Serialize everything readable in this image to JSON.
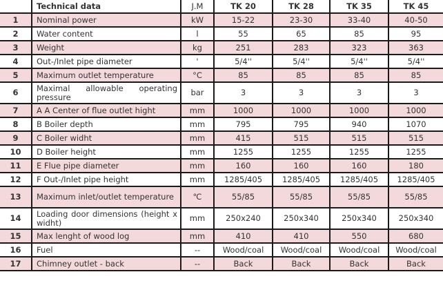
{
  "header": {
    "title": "Technical data",
    "unit": "J.M",
    "models": [
      "TK 20",
      "TK 28",
      "TK  35",
      "TK  45"
    ]
  },
  "rows": [
    {
      "n": "1",
      "name": "Nominal power",
      "unit": "kW",
      "values": [
        "15-22",
        "23-30",
        "33-40",
        "40-50"
      ]
    },
    {
      "n": "2",
      "name": "Water content",
      "unit": "l",
      "values": [
        "55",
        "65",
        "85",
        "95"
      ]
    },
    {
      "n": "3",
      "name": "Weight",
      "unit": "kg",
      "values": [
        "251",
        "283",
        "323",
        "363"
      ]
    },
    {
      "n": "4",
      "name": "Out-/Inlet pipe diameter",
      "unit": "'",
      "values": [
        "5/4''",
        "5/4''",
        "5/4''",
        "5/4''"
      ]
    },
    {
      "n": "5",
      "name": "Maximum outlet temperature",
      "unit": "°C",
      "values": [
        "85",
        "85",
        "85",
        "85"
      ]
    },
    {
      "n": "6",
      "name": "Maximal allowable operating pressure",
      "unit": "bar",
      "values": [
        "3",
        "3",
        "3",
        "3"
      ]
    },
    {
      "n": "7",
      "name": "A  A Center of flue outlet hight",
      "unit": "mm",
      "values": [
        "1000",
        "1000",
        "1000",
        "1000"
      ]
    },
    {
      "n": "8",
      "name": "B  Boiler depth",
      "unit": "mm",
      "values": [
        "795",
        "795",
        "940",
        "1070"
      ]
    },
    {
      "n": "9",
      "name": "C  Boiler widht",
      "unit": "mm",
      "values": [
        "415",
        "515",
        "515",
        "515"
      ]
    },
    {
      "n": "10",
      "name": "D  Boiler height",
      "unit": "mm",
      "values": [
        "1255",
        "1255",
        "1255",
        "1255"
      ]
    },
    {
      "n": "11",
      "name": "E  Flue pipe diameter",
      "unit": "mm",
      "values": [
        "160",
        "160",
        "160",
        "180"
      ]
    },
    {
      "n": "12",
      "name": "F  Out-/Inlet pipe height",
      "unit": "mm",
      "values": [
        "1285/405",
        "1285/405",
        "1285/405",
        "1285/405"
      ]
    },
    {
      "n": "13",
      "name": "Maximum inlet/outlet temperature",
      "unit": "℃",
      "values": [
        "55/85",
        "55/85",
        "55/85",
        "55/85"
      ]
    },
    {
      "n": "14",
      "name": "Loading door dimensions (height x widht)",
      "unit": "mm",
      "values": [
        "250x240",
        "250x340",
        "250x340",
        "250x340"
      ]
    },
    {
      "n": "15",
      "name": "Max lenght of wood log",
      "unit": "mm",
      "values": [
        "410",
        "410",
        "550",
        "680"
      ]
    },
    {
      "n": "16",
      "name": "Fuel",
      "unit": "--",
      "values": [
        "Wood/coal",
        "Wood/coal",
        "Wood/coal",
        "Wood/coal"
      ]
    },
    {
      "n": "17",
      "name": "Chimney outlet - back",
      "unit": "--",
      "values": [
        "Back",
        "Back",
        "Back",
        "Back"
      ]
    }
  ]
}
